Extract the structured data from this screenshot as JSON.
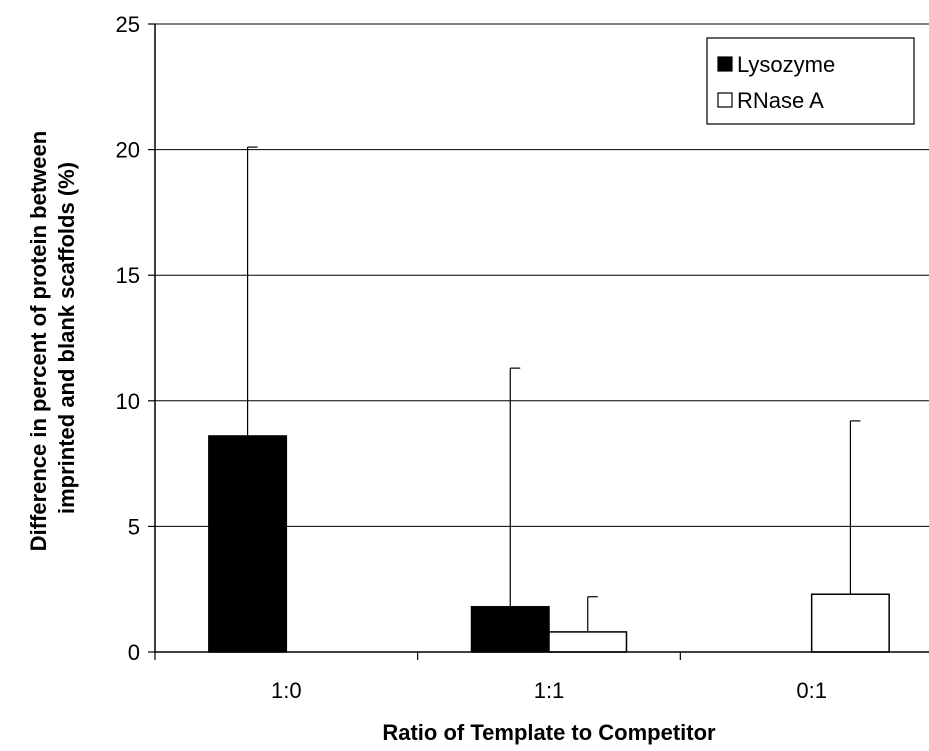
{
  "chart_data": {
    "type": "bar",
    "categories": [
      "1:0",
      "1:1",
      "0:1"
    ],
    "series": [
      {
        "name": "Lysozyme",
        "values": [
          8.6,
          1.8,
          null
        ],
        "error_plus": [
          11.5,
          9.5,
          null
        ],
        "fill": "#000000"
      },
      {
        "name": "RNase A",
        "values": [
          null,
          0.8,
          2.3
        ],
        "error_plus": [
          null,
          1.4,
          6.9
        ],
        "fill": "#ffffff"
      }
    ],
    "xlabel": "Ratio of Template to Competitor",
    "ylabel_lines": [
      "Difference in percent of protein between",
      "imprinted and blank scaffolds (%)"
    ],
    "ylim": [
      0,
      25
    ],
    "yticks": [
      0,
      5,
      10,
      15,
      20,
      25
    ],
    "grid": "horizontal",
    "legend_position": "top-right"
  }
}
